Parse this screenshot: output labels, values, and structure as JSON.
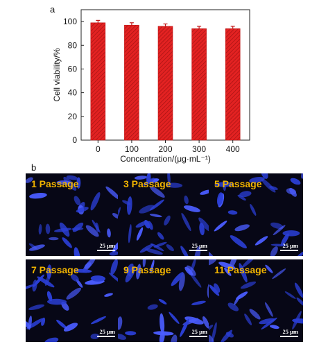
{
  "panel_labels": {
    "a": "a",
    "b": "b"
  },
  "chart_data": {
    "type": "bar",
    "title": "",
    "xlabel": "Concentration/(μg·mL⁻¹)",
    "ylabel": "Cell viability/%",
    "categories": [
      "0",
      "100",
      "200",
      "300",
      "400"
    ],
    "values": [
      99,
      97,
      96,
      94,
      94
    ],
    "errors": [
      2,
      2,
      2,
      2,
      2
    ],
    "ylim": [
      0,
      110
    ],
    "yticks": [
      "0",
      "20",
      "40",
      "60",
      "80",
      "100"
    ],
    "bar_color": "#e02020",
    "bar_pattern": "diagonal-hatch",
    "grid": false,
    "legend": "none"
  },
  "micrographs": [
    {
      "label": "1 Passage",
      "scale": "25 μm"
    },
    {
      "label": "3 Passage",
      "scale": "25 μm"
    },
    {
      "label": "5 Passage",
      "scale": "25 μm"
    },
    {
      "label": "7 Passage",
      "scale": "25 μm"
    },
    {
      "label": "9 Passage",
      "scale": "25 μm"
    },
    {
      "label": "11 Passage",
      "scale": "25 μm"
    }
  ],
  "colors": {
    "cell": "#2b3fd6",
    "cell_bright": "#4a5cff",
    "background": "#070716",
    "label": "#f2b400"
  }
}
